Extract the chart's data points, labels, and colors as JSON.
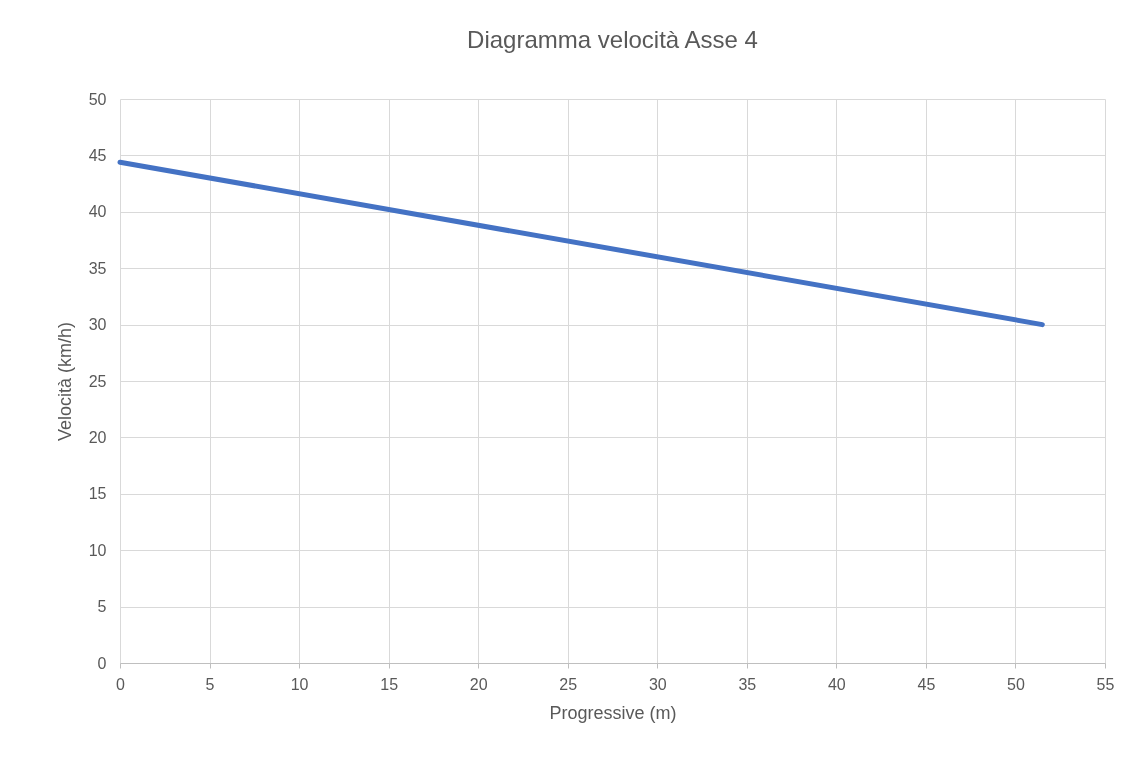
{
  "chart_data": {
    "type": "line",
    "title": "Diagramma velocità Asse 4",
    "xlabel": "Progressive (m)",
    "ylabel": "Velocità (km/h)",
    "series": [
      {
        "color": "#4472c4",
        "x": [
          0,
          51.5
        ],
        "values": [
          44.4,
          30
        ]
      }
    ],
    "xlim": [
      0,
      55
    ],
    "xticks": [
      0,
      5,
      10,
      15,
      20,
      25,
      30,
      35,
      40,
      45,
      50,
      55
    ],
    "ylim": [
      0,
      50
    ],
    "yticks": [
      0,
      5,
      10,
      15,
      20,
      25,
      30,
      35,
      40,
      45,
      50
    ],
    "grid": true,
    "marker": "none",
    "line_style": "solid"
  }
}
